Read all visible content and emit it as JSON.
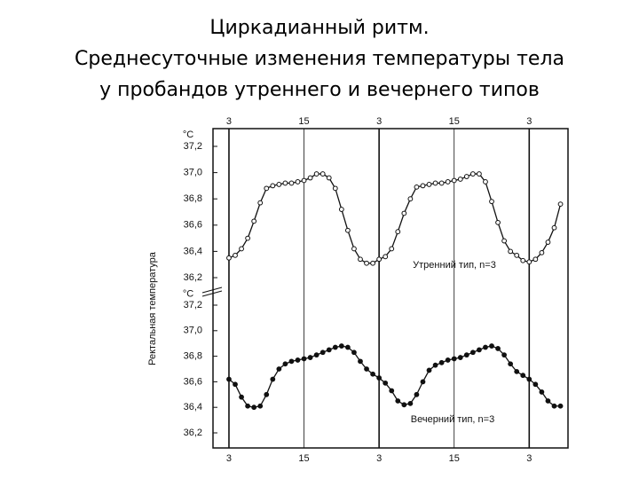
{
  "title": [
    "Циркадианный ритм.",
    "Среднесуточные изменения температуры тела",
    "у пробандов утреннего и вечернего типов"
  ],
  "y_label": "Ректальная температура",
  "chart_data": [
    {
      "type": "line",
      "unit": "°C",
      "marker": "open",
      "xtick_side": "top",
      "x": [
        3,
        4,
        5,
        6,
        7,
        8,
        9,
        10,
        11,
        12,
        13,
        14,
        15,
        16,
        17,
        18,
        19,
        20,
        21,
        22,
        23,
        24,
        25,
        26,
        27,
        28,
        29,
        30,
        31,
        32,
        33,
        34,
        35,
        36,
        37,
        38,
        39,
        40,
        41,
        42,
        43,
        44,
        45,
        46,
        47,
        48,
        49,
        50,
        51,
        52,
        53,
        54,
        55,
        56
      ],
      "series": [
        {
          "name": "Утренний тип, n=3",
          "color": "#111111",
          "values": [
            36.35,
            36.37,
            36.42,
            36.5,
            36.63,
            36.77,
            36.88,
            36.9,
            36.91,
            36.92,
            36.92,
            36.93,
            36.94,
            36.96,
            36.99,
            36.99,
            36.96,
            36.88,
            36.72,
            36.56,
            36.42,
            36.34,
            36.31,
            36.31,
            36.34,
            36.36,
            36.42,
            36.55,
            36.69,
            36.8,
            36.89,
            36.9,
            36.91,
            36.92,
            36.92,
            36.93,
            36.94,
            36.95,
            36.97,
            36.99,
            36.99,
            36.93,
            36.78,
            36.62,
            36.48,
            36.4,
            36.37,
            36.33,
            36.32,
            36.34,
            36.39,
            36.47,
            36.58,
            36.76
          ]
        }
      ],
      "xlim": [
        0.45,
        57.2
      ],
      "xticks": [
        3,
        15,
        {
          "value": 27,
          "label": "3"
        },
        {
          "value": 39,
          "label": "15"
        },
        {
          "value": 51,
          "label": "3"
        }
      ],
      "ylim": [
        36.1,
        37.3
      ],
      "yticks": [
        {
          "value": 36.2,
          "label": "36,2"
        },
        {
          "value": 36.4,
          "label": "36,4"
        },
        {
          "value": 36.6,
          "label": "36,6"
        },
        {
          "value": 36.8,
          "label": "36,8"
        },
        {
          "value": 37.0,
          "label": "37,0"
        },
        {
          "value": 37.2,
          "label": "37,2"
        }
      ]
    },
    {
      "type": "line",
      "unit": "°C",
      "marker": "filled",
      "xtick_side": "bottom",
      "x": [
        3,
        4,
        5,
        6,
        7,
        8,
        9,
        10,
        11,
        12,
        13,
        14,
        15,
        16,
        17,
        18,
        19,
        20,
        21,
        22,
        23,
        24,
        25,
        26,
        27,
        28,
        29,
        30,
        31,
        32,
        33,
        34,
        35,
        36,
        37,
        38,
        39,
        40,
        41,
        42,
        43,
        44,
        45,
        46,
        47,
        48,
        49,
        50,
        51,
        52,
        53,
        54,
        55,
        56
      ],
      "series": [
        {
          "name": "Вечерний тип, n=3",
          "color": "#111111",
          "values": [
            36.62,
            36.58,
            36.48,
            36.41,
            36.4,
            36.41,
            36.5,
            36.62,
            36.7,
            36.74,
            36.76,
            36.77,
            36.78,
            36.79,
            36.81,
            36.83,
            36.85,
            36.87,
            36.88,
            36.87,
            36.83,
            36.76,
            36.7,
            36.66,
            36.63,
            36.59,
            36.53,
            36.45,
            36.42,
            36.43,
            36.5,
            36.6,
            36.69,
            36.73,
            36.75,
            36.77,
            36.78,
            36.79,
            36.81,
            36.83,
            36.85,
            36.87,
            36.88,
            36.86,
            36.81,
            36.74,
            36.68,
            36.65,
            36.62,
            36.58,
            36.52,
            36.45,
            36.41,
            36.41
          ]
        }
      ],
      "xlim": [
        0.45,
        57.2
      ],
      "xticks": [
        3,
        15,
        {
          "value": 27,
          "label": "3"
        },
        {
          "value": 39,
          "label": "15"
        },
        {
          "value": 51,
          "label": "3"
        }
      ],
      "ylim": [
        36.1,
        37.3
      ],
      "yticks": [
        {
          "value": 36.2,
          "label": "36,2"
        },
        {
          "value": 36.4,
          "label": "36,4"
        },
        {
          "value": 36.6,
          "label": "36,6"
        },
        {
          "value": 36.8,
          "label": "36,8"
        },
        {
          "value": 37.0,
          "label": "37,0"
        },
        {
          "value": 37.2,
          "label": "37,2"
        }
      ]
    }
  ]
}
